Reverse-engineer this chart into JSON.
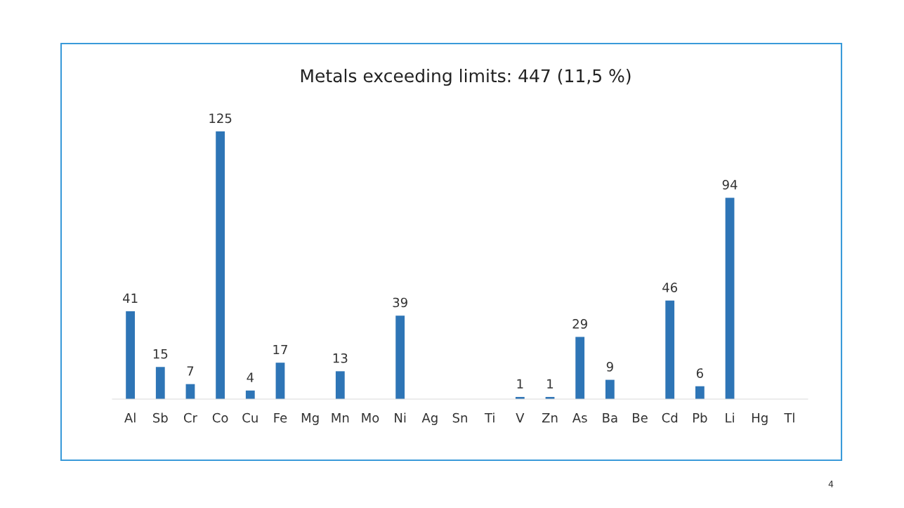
{
  "chart_data": {
    "type": "bar",
    "title": "Metals exceeding limits: 447 (11,5 %)",
    "categories": [
      "Al",
      "Sb",
      "Cr",
      "Co",
      "Cu",
      "Fe",
      "Mg",
      "Mn",
      "Mo",
      "Ni",
      "Ag",
      "Sn",
      "Ti",
      "V",
      "Zn",
      "As",
      "Ba",
      "Be",
      "Cd",
      "Pb",
      "Li",
      "Hg",
      "Tl"
    ],
    "values": [
      41,
      15,
      7,
      125,
      4,
      17,
      0,
      13,
      0,
      39,
      0,
      0,
      0,
      1,
      1,
      29,
      9,
      0,
      46,
      6,
      94,
      0,
      0
    ],
    "value_labels": [
      "41",
      "15",
      "7",
      "125",
      "4",
      "17",
      null,
      "13",
      null,
      "39",
      null,
      null,
      null,
      "1",
      "1",
      "29",
      "9",
      null,
      "46",
      "6",
      "94",
      null,
      null
    ],
    "color": "#2e75b6",
    "annotations": [
      "4"
    ]
  }
}
